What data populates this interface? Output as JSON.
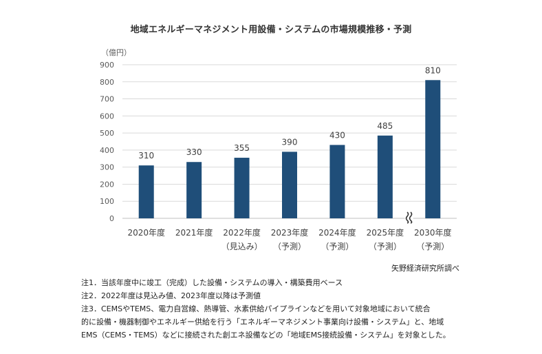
{
  "title": "地域エネルギーマネジメント用設備・システムの市場規模推移・予測",
  "chart_data": {
    "type": "bar",
    "unit_label": "（億円）",
    "categories": [
      {
        "year": "2020年度",
        "sub": ""
      },
      {
        "year": "2021年度",
        "sub": ""
      },
      {
        "year": "2022年度",
        "sub": "（見込み）"
      },
      {
        "year": "2023年度",
        "sub": "（予測）"
      },
      {
        "year": "2024年度",
        "sub": "（予測）"
      },
      {
        "year": "2025年度",
        "sub": "（予測）"
      },
      {
        "year": "2030年度",
        "sub": "（予測）"
      }
    ],
    "values": [
      310,
      330,
      355,
      390,
      430,
      485,
      810
    ],
    "ylim": [
      0,
      900
    ],
    "yticks": [
      0,
      100,
      200,
      300,
      400,
      500,
      600,
      700,
      800,
      900
    ],
    "grid": true,
    "axis_break_after_index": 5,
    "bar_color": "#1f4e79",
    "grid_color": "#d9d9d9"
  },
  "source": "矢野経済研究所調べ",
  "notes": [
    "注1．当該年度中に竣工（完成）した設備・システムの導入・構築費用ベース",
    "注2．2022年度は見込み値、2023年度以降は予測値",
    "注3．CEMSやTEMS、電力自営線、熱導管、水素供給パイプラインなどを用いて対象地域において統合",
    "的に設備・機器制御やエネルギー供給を行う「エネルギーマネジメント事業向け設備・システム」と、地域",
    "EMS（CEMS・TEMS）などに接続された創エネ設備などの「地域EMS接続設備・システム」を対象とした。"
  ]
}
